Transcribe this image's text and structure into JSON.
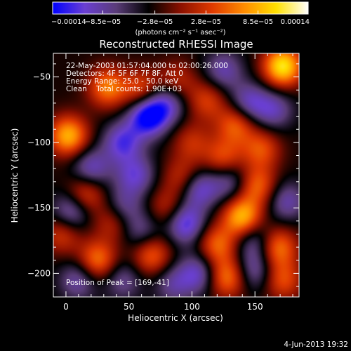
{
  "chart_data": {
    "type": "heatmap",
    "title": "Reconstructed RHESSI Image",
    "xlabel": "Heliocentric X (arcsec)",
    "ylabel": "Heliocentric Y (arcsec)",
    "xlim": [
      -10,
      185
    ],
    "ylim": [
      -218,
      -32
    ],
    "x_ticks": [
      0,
      50,
      100,
      150
    ],
    "x_tick_labels": [
      "0",
      "50",
      "100",
      "150"
    ],
    "y_ticks": [
      -50,
      -100,
      -150,
      -200
    ],
    "y_tick_labels": [
      "−50",
      "−100",
      "−150",
      "−200"
    ],
    "colorbar": {
      "min": -0.00014,
      "max": 0.00014,
      "tick_values": [
        -0.00014,
        -8.5e-05,
        -2.8e-05,
        2.8e-05,
        8.5e-05,
        0.00014
      ],
      "tick_labels": [
        "−0.00014",
        "−8.5e−05",
        "−2.8e−05",
        "2.8e−05",
        "8.5e−05",
        "0.00014"
      ],
      "units_label": "(photons cm⁻² s⁻¹ asec⁻²)",
      "colormap": [
        "#0000ff",
        "#6a3fd2",
        "#5a3c78",
        "#000000",
        "#8a1000",
        "#e03a00",
        "#ff8c00",
        "#ffe000",
        "#ffffff"
      ]
    },
    "annotations": [
      "22-May-2003 01:57:04.000 to 02:00:26.000",
      "Detectors: 4F 5F 6F 7F 8F, Att 0",
      "Energy Range: 25.0 - 50.0 keV",
      "Clean    Total counts: 1.90E+03"
    ],
    "peak_label": "Position of Peak = [169,-41]",
    "sources": [
      {
        "x": 172,
        "y": -42,
        "value": 0.00014
      },
      {
        "x": 2,
        "y": -95,
        "value": 0.000115
      },
      {
        "x": 140,
        "y": -157,
        "value": 0.00012
      },
      {
        "x": 33,
        "y": -58,
        "value": 9e-05
      },
      {
        "x": 60,
        "y": -60,
        "value": 7e-05
      },
      {
        "x": 15,
        "y": -140,
        "value": 8e-05
      },
      {
        "x": 112,
        "y": -68,
        "value": 6e-05
      },
      {
        "x": 135,
        "y": -86,
        "value": 8e-05
      },
      {
        "x": 155,
        "y": -105,
        "value": 7e-05
      },
      {
        "x": 152,
        "y": -133,
        "value": 8e-05
      },
      {
        "x": 168,
        "y": -180,
        "value": 9e-05
      },
      {
        "x": 125,
        "y": -112,
        "value": 7e-05
      },
      {
        "x": 93,
        "y": -127,
        "value": 6e-05
      },
      {
        "x": 100,
        "y": -100,
        "value": 5e-05
      },
      {
        "x": 25,
        "y": -190,
        "value": 9e-05
      },
      {
        "x": 68,
        "y": -186,
        "value": 8e-05
      },
      {
        "x": 120,
        "y": -178,
        "value": 8e-05
      },
      {
        "x": 128,
        "y": -203,
        "value": 9e-05
      },
      {
        "x": 80,
        "y": -150,
        "value": 5e-05
      },
      {
        "x": 38,
        "y": -160,
        "value": 6e-05
      },
      {
        "x": 172,
        "y": -205,
        "value": 7e-05
      },
      {
        "x": -3,
        "y": -170,
        "value": 6e-05
      },
      {
        "x": 88,
        "y": -53,
        "value": 5e-05
      },
      {
        "x": 65,
        "y": -80,
        "value": -0.00012
      },
      {
        "x": 45,
        "y": -100,
        "value": -8e-05
      },
      {
        "x": 80,
        "y": -70,
        "value": -7e-05
      },
      {
        "x": 145,
        "y": -70,
        "value": -7e-05
      },
      {
        "x": 165,
        "y": -75,
        "value": -6e-05
      },
      {
        "x": 20,
        "y": -120,
        "value": -7e-05
      },
      {
        "x": 55,
        "y": -125,
        "value": -7e-05
      },
      {
        "x": 105,
        "y": -135,
        "value": -8e-05
      },
      {
        "x": 130,
        "y": -130,
        "value": -6e-05
      },
      {
        "x": 5,
        "y": -152,
        "value": -8e-05
      },
      {
        "x": 45,
        "y": -150,
        "value": -6e-05
      },
      {
        "x": 95,
        "y": -162,
        "value": -9e-05
      },
      {
        "x": 60,
        "y": -168,
        "value": -5e-05
      },
      {
        "x": 150,
        "y": -175,
        "value": -6e-05
      },
      {
        "x": 105,
        "y": -200,
        "value": -7e-05
      },
      {
        "x": 150,
        "y": -198,
        "value": -6e-05
      },
      {
        "x": 10,
        "y": -205,
        "value": -6e-05
      },
      {
        "x": 45,
        "y": -205,
        "value": -5e-05
      },
      {
        "x": 85,
        "y": -208,
        "value": -5e-05
      },
      {
        "x": 125,
        "y": -45,
        "value": -6e-05
      },
      {
        "x": 175,
        "y": -145,
        "value": -6e-05
      }
    ]
  },
  "footer": {
    "timestamp": "4-Jun-2013 19:32"
  }
}
